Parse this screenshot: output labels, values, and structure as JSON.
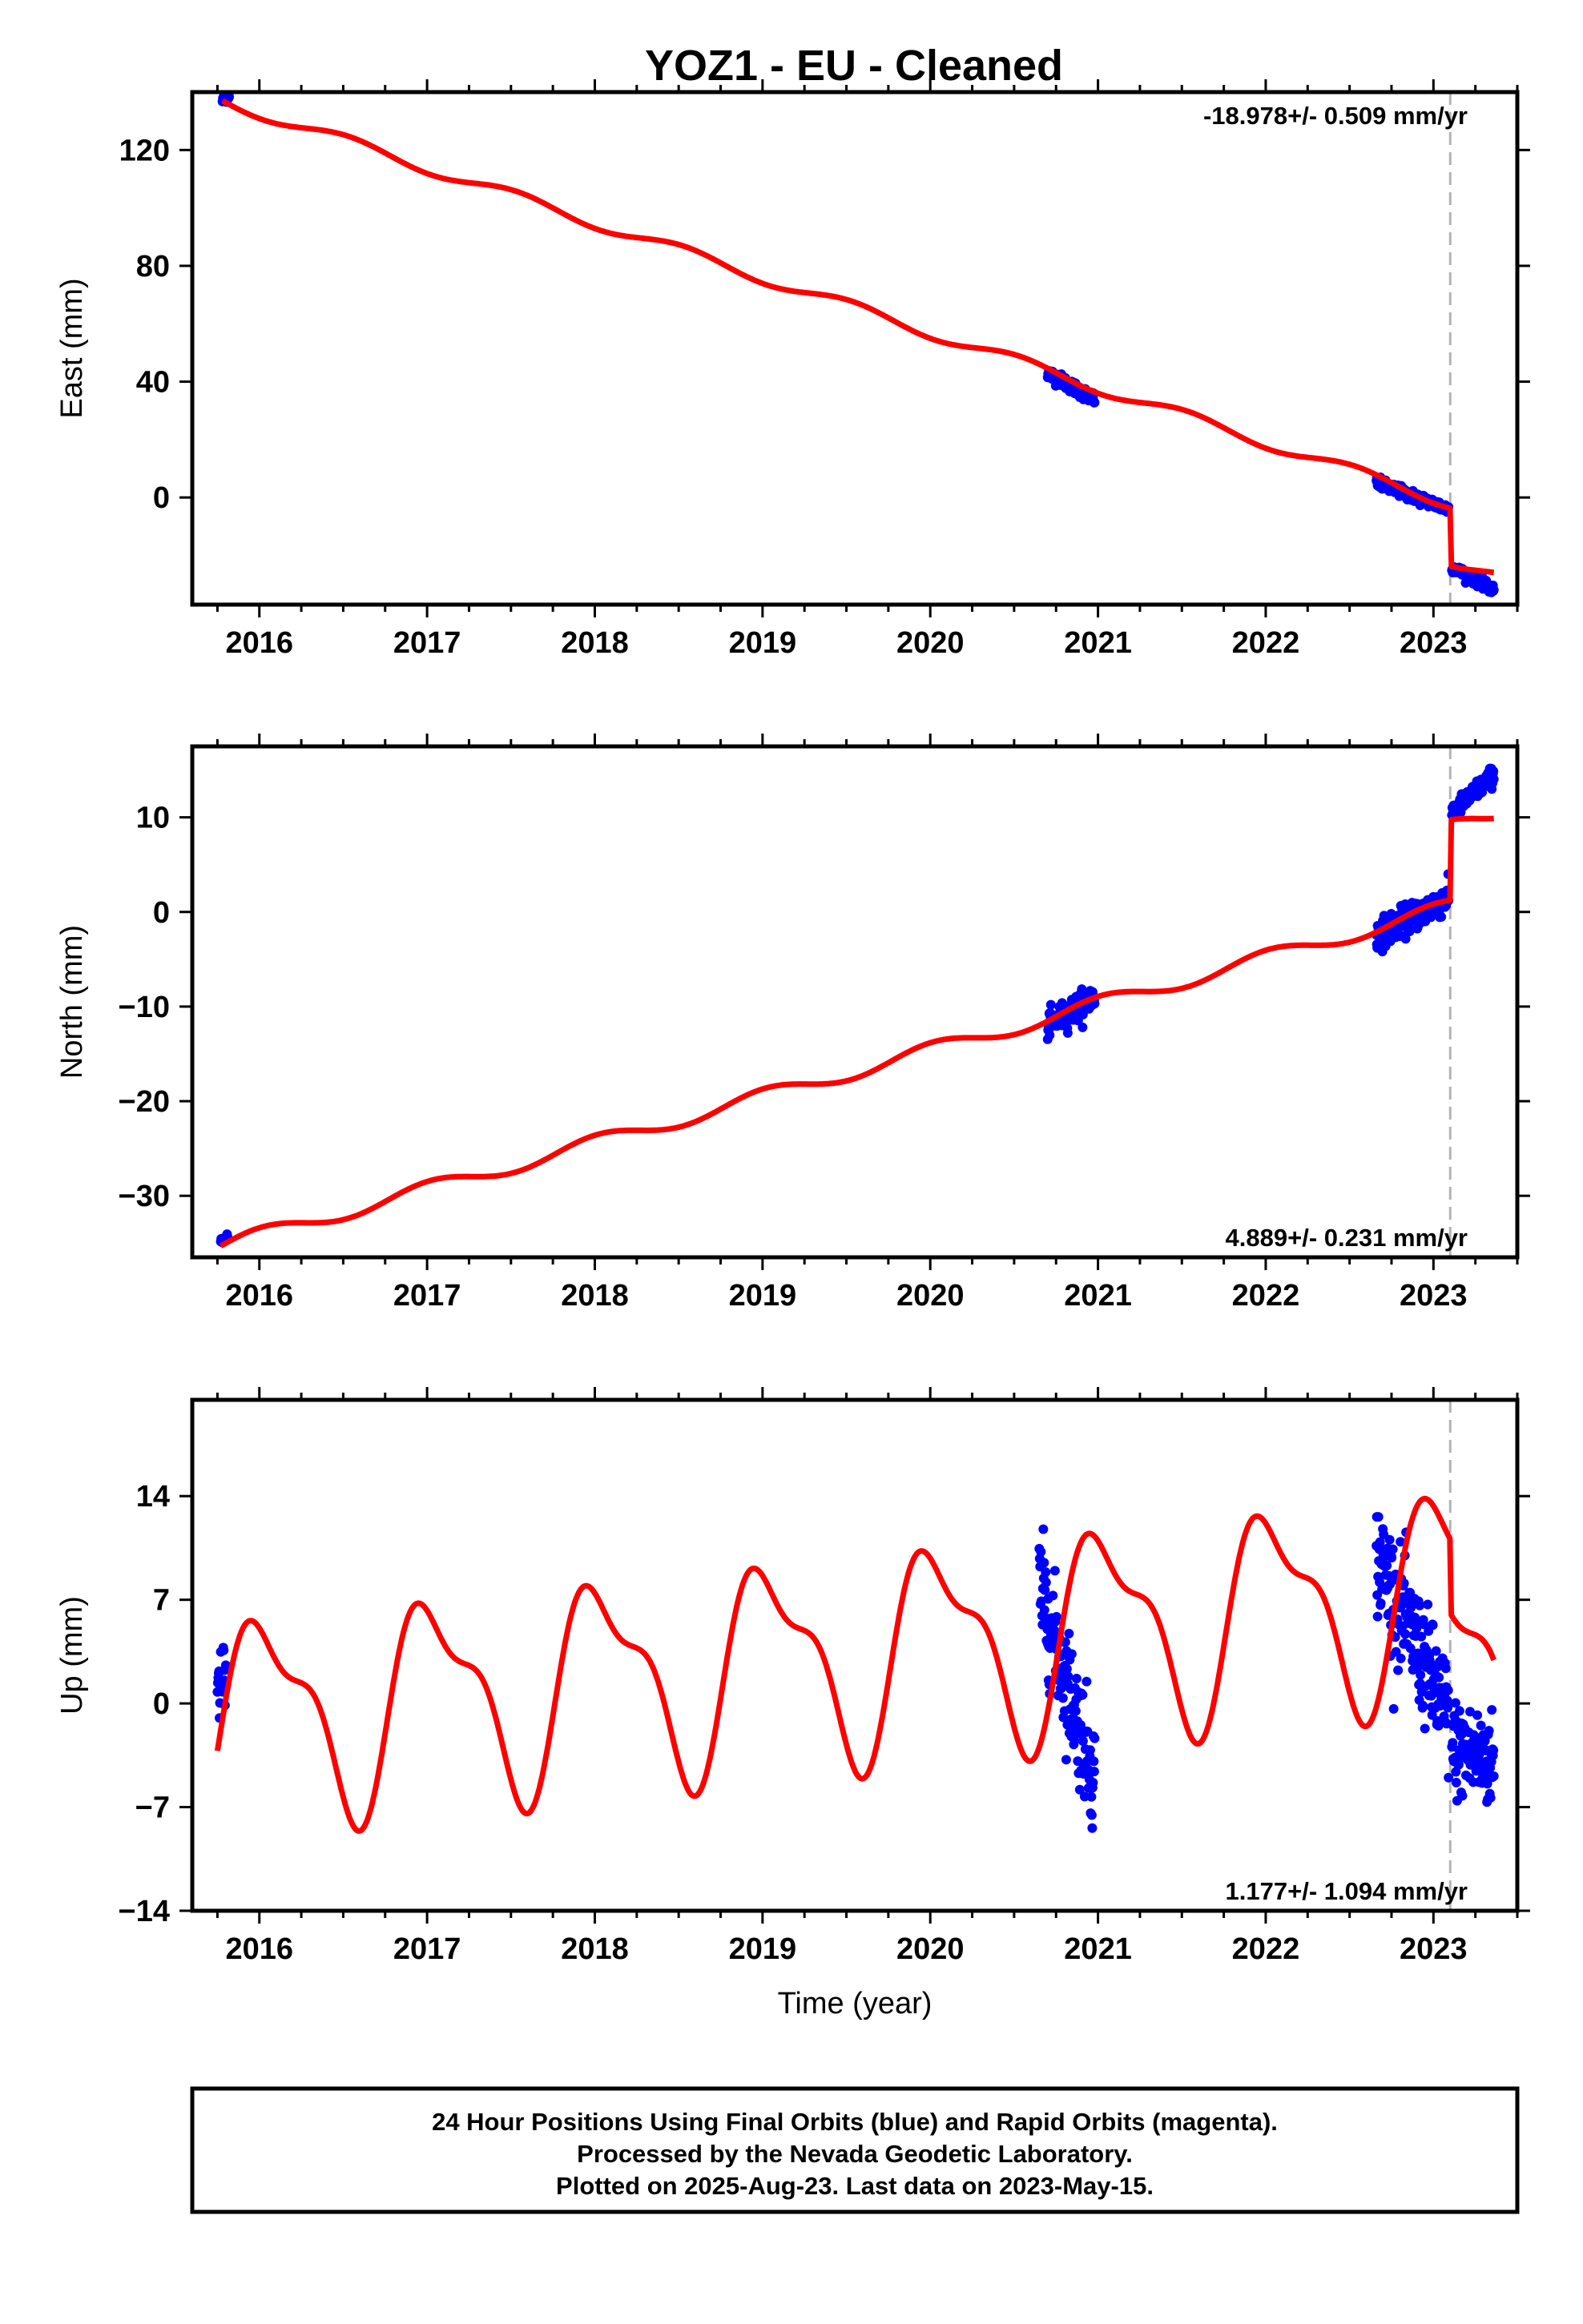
{
  "title": "YOZ1  - EU - Cleaned",
  "colors": {
    "final_orbits": "#0000ff",
    "model": "#ff0000",
    "event_line": "#b3b3b3",
    "frame": "#000000"
  },
  "chart_data": [
    {
      "type": "scatter",
      "ylabel": "East (mm)",
      "xlabel": "",
      "rate_text": "-18.978+/- 0.509 mm/yr",
      "rate_position": "top-right",
      "xlim": [
        2015.6,
        2023.5
      ],
      "ylim": [
        -37,
        140
      ],
      "x_ticks": [
        2016,
        2017,
        2018,
        2019,
        2020,
        2021,
        2022,
        2023
      ],
      "x_tick_labels": [
        "2016",
        "2017",
        "2018",
        "2019",
        "2020",
        "2021",
        "2022",
        "2023"
      ],
      "y_ticks": [
        0,
        40,
        80,
        120
      ],
      "y_tick_labels": [
        "0",
        "40",
        "80",
        "120"
      ],
      "event_line_x": 2023.1,
      "observation_segments": [
        {
          "x": [
            2015.78,
            2015.82
          ],
          "y": [
            137,
            139
          ],
          "noise": 1.5
        },
        {
          "x": [
            2020.7,
            2020.98
          ],
          "y": [
            43,
            34
          ],
          "noise": 2.0
        },
        {
          "x": [
            2022.66,
            2023.09
          ],
          "y": [
            5,
            -4
          ],
          "noise": 1.8
        },
        {
          "x": [
            2023.11,
            2023.36
          ],
          "y": [
            -24,
            -32
          ],
          "noise": 1.5
        }
      ],
      "model": {
        "t0": 2015.78,
        "t1": 2023.36,
        "intercept": 137,
        "rate": -18.978,
        "annual_sin": -2.0,
        "annual_cos": 0,
        "semiannual_sin": 0,
        "semiannual_cos": 0,
        "steps": [
          {
            "x": 2023.1,
            "size": -20
          }
        ]
      }
    },
    {
      "type": "scatter",
      "ylabel": "North (mm)",
      "xlabel": "",
      "rate_text": "4.889+/- 0.231 mm/yr",
      "rate_position": "bottom-right",
      "xlim": [
        2015.6,
        2023.5
      ],
      "ylim": [
        -36.5,
        17.5
      ],
      "x_ticks": [
        2016,
        2017,
        2018,
        2019,
        2020,
        2021,
        2022,
        2023
      ],
      "x_tick_labels": [
        "2016",
        "2017",
        "2018",
        "2019",
        "2020",
        "2021",
        "2022",
        "2023"
      ],
      "y_ticks": [
        -30,
        -20,
        -10,
        0,
        10
      ],
      "y_tick_labels": [
        "−30",
        "−20",
        "−10",
        "0",
        "10"
      ],
      "event_line_x": 2023.1,
      "observation_segments": [
        {
          "x": [
            2015.77,
            2015.81
          ],
          "y": [
            -34.8,
            -34.5
          ],
          "noise": 0.4
        },
        {
          "x": [
            2020.7,
            2020.98
          ],
          "y": [
            -12,
            -9
          ],
          "noise": 1.3
        },
        {
          "x": [
            2022.66,
            2023.09
          ],
          "y": [
            -2.5,
            1.5
          ],
          "noise": 1.4
        },
        {
          "x": [
            2023.11,
            2023.36
          ],
          "y": [
            10.5,
            14.5
          ],
          "noise": 0.9
        }
      ],
      "model": {
        "t0": 2015.77,
        "t1": 2023.36,
        "intercept": -35.3,
        "rate": 4.889,
        "annual_sin": 0.8,
        "annual_cos": 0,
        "semiannual_sin": 0,
        "semiannual_cos": 0,
        "steps": [
          {
            "x": 2023.1,
            "size": 8.5
          }
        ]
      }
    },
    {
      "type": "scatter",
      "ylabel": "Up (mm)",
      "xlabel": "Time (year)",
      "rate_text": "1.177+/- 1.094 mm/yr",
      "rate_position": "bottom-right",
      "xlim": [
        2015.6,
        2023.5
      ],
      "ylim": [
        -14,
        20.5
      ],
      "x_ticks": [
        2016,
        2017,
        2018,
        2019,
        2020,
        2021,
        2022,
        2023
      ],
      "x_tick_labels": [
        "2016",
        "2017",
        "2018",
        "2019",
        "2020",
        "2021",
        "2022",
        "2023"
      ],
      "y_ticks": [
        -14,
        -7,
        0,
        7,
        14
      ],
      "y_tick_labels": [
        "−14",
        "−7",
        "0",
        "7",
        "14"
      ],
      "event_line_x": 2023.1,
      "observation_segments": [
        {
          "x": [
            2015.75,
            2015.8
          ],
          "y": [
            2,
            1
          ],
          "noise": 3.0
        },
        {
          "x": [
            2020.65,
            2020.98
          ],
          "y": [
            8,
            -5
          ],
          "noise": 3.5
        },
        {
          "x": [
            2022.66,
            2023.09
          ],
          "y": [
            10,
            -1
          ],
          "noise": 3.5
        },
        {
          "x": [
            2023.11,
            2023.36
          ],
          "y": [
            -3,
            -4
          ],
          "noise": 3.0
        }
      ],
      "model": {
        "t0": 2015.75,
        "t1": 2023.36,
        "intercept": -3.2,
        "rate": 1.177,
        "annual_sin": 6.0,
        "annual_cos": -2.0,
        "semiannual_sin": 2.5,
        "semiannual_cos": 0,
        "steps": [
          {
            "x": 2023.1,
            "size": -5
          }
        ]
      }
    }
  ],
  "footer": {
    "line1": "24 Hour Positions Using Final Orbits (blue) and Rapid Orbits (magenta).",
    "line2": "Processed by the Nevada Geodetic Laboratory.",
    "line3": "Plotted on 2025-Aug-23. Last data on 2023-May-15."
  }
}
